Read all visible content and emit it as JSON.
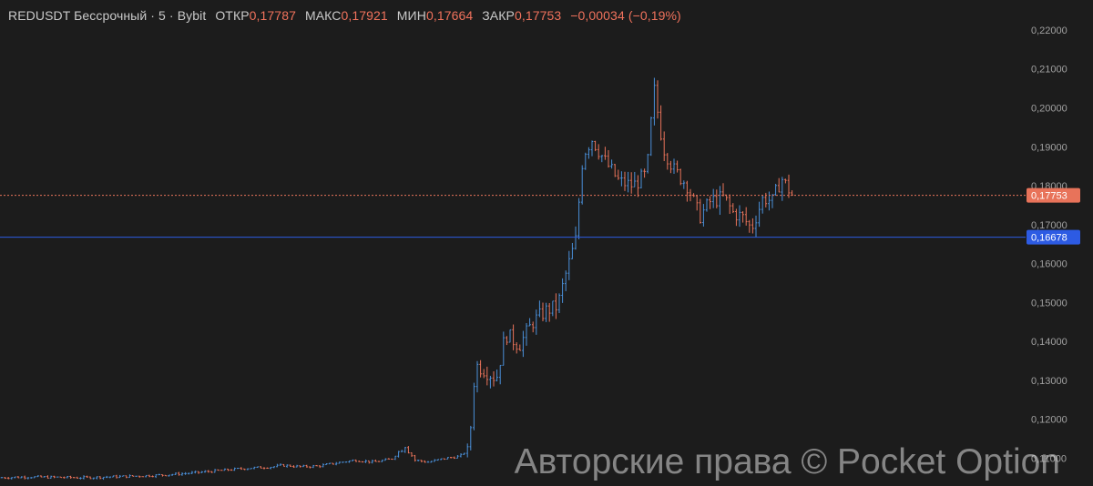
{
  "header": {
    "symbol": "REDUSDT Бессрочный",
    "dot1": "·",
    "interval": "5",
    "dot2": "·",
    "exchange": "Bybit",
    "open_label": "ОТКР",
    "open_value": "0,17787",
    "high_label": "МАКС",
    "high_value": "0,17921",
    "low_label": "МИН",
    "low_value": "0,17664",
    "close_label": "ЗАКР",
    "close_value": "0,17753",
    "change": "−0,00034 (−0,19%)"
  },
  "colors": {
    "background": "#1c1c1c",
    "up": "#4a90d9",
    "down": "#e8735a",
    "price_line": "#e8735a",
    "level_line": "#2d5be3",
    "axis_text": "#a0a0a0"
  },
  "watermark": "Авторские права © Pocket Option",
  "chart_data": {
    "type": "bar",
    "style": "ohlc",
    "ylim": [
      0.1045,
      0.2235
    ],
    "y_ticks": [
      "0,22000",
      "0,21000",
      "0,20000",
      "0,19000",
      "0,18000",
      "0,17000",
      "0,16000",
      "0,15000",
      "0,14000",
      "0,13000",
      "0,12000",
      "0,11000"
    ],
    "y_tick_values": [
      0.22,
      0.21,
      0.2,
      0.19,
      0.18,
      0.17,
      0.16,
      0.15,
      0.14,
      0.13,
      0.12,
      0.11
    ],
    "last_price": 0.17753,
    "last_price_label": "0,17753",
    "level_price": 0.16678,
    "level_label": "0,16678",
    "close_path": [
      [
        0,
        0.105
      ],
      [
        30,
        0.1052
      ],
      [
        60,
        0.1051
      ],
      [
        90,
        0.105
      ],
      [
        120,
        0.1052
      ],
      [
        150,
        0.1054
      ],
      [
        180,
        0.1057
      ],
      [
        210,
        0.1062
      ],
      [
        240,
        0.1068
      ],
      [
        270,
        0.1074
      ],
      [
        300,
        0.1078
      ],
      [
        310,
        0.1082
      ],
      [
        330,
        0.1078
      ],
      [
        350,
        0.108
      ],
      [
        370,
        0.1088
      ],
      [
        390,
        0.1095
      ],
      [
        410,
        0.109
      ],
      [
        430,
        0.1098
      ],
      [
        445,
        0.1135
      ],
      [
        455,
        0.1095
      ],
      [
        470,
        0.109
      ],
      [
        490,
        0.11
      ],
      [
        505,
        0.1105
      ],
      [
        515,
        0.1125
      ],
      [
        522,
        0.134
      ],
      [
        530,
        0.133
      ],
      [
        545,
        0.1305
      ],
      [
        555,
        0.142
      ],
      [
        570,
        0.139
      ],
      [
        585,
        0.145
      ],
      [
        600,
        0.148
      ],
      [
        612,
        0.149
      ],
      [
        622,
        0.158
      ],
      [
        632,
        0.166
      ],
      [
        640,
        0.188
      ],
      [
        650,
        0.192
      ],
      [
        665,
        0.186
      ],
      [
        680,
        0.181
      ],
      [
        695,
        0.18
      ],
      [
        710,
        0.183
      ],
      [
        718,
        0.205
      ],
      [
        728,
        0.19
      ],
      [
        740,
        0.184
      ],
      [
        755,
        0.18
      ],
      [
        768,
        0.172
      ],
      [
        780,
        0.176
      ],
      [
        795,
        0.177
      ],
      [
        805,
        0.173
      ],
      [
        815,
        0.172
      ],
      [
        825,
        0.169
      ],
      [
        838,
        0.177
      ],
      [
        848,
        0.176
      ],
      [
        858,
        0.182
      ],
      [
        870,
        0.1775
      ]
    ]
  }
}
